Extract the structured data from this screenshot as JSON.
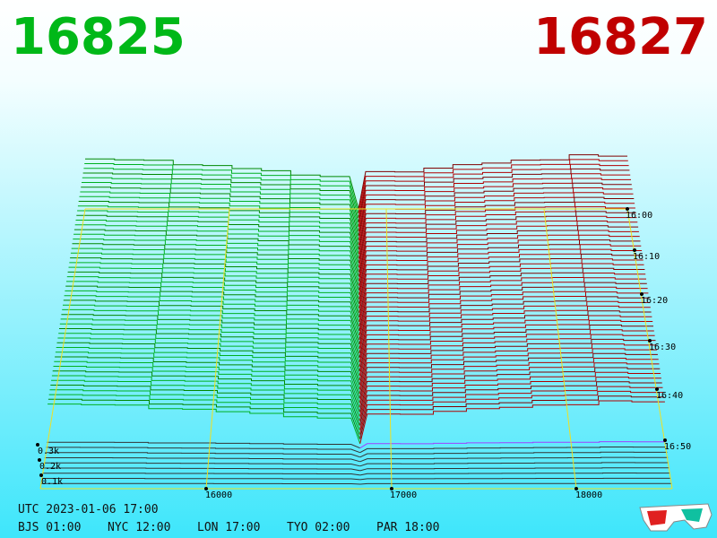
{
  "header": {
    "bid": "16825",
    "ask": "16827"
  },
  "price_axis": [
    "16000",
    "17000",
    "18000"
  ],
  "time_axis": [
    "16:00",
    "16:10",
    "16:20",
    "16:30",
    "16:40",
    "16:50"
  ],
  "volume_axis": [
    "0.3k",
    "0.2k",
    "0.1k"
  ],
  "footer": {
    "utc": "UTC 2023-01-06 17:00",
    "zones": [
      "BJS 01:00",
      "NYC 12:00",
      "LON 17:00",
      "TYO 02:00",
      "PAR 18:00"
    ]
  }
}
